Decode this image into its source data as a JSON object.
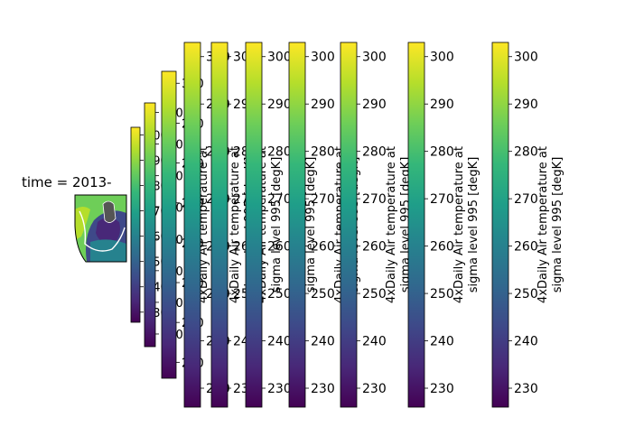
{
  "chart_data": {
    "type": "heatmap",
    "title": "time = 2013-",
    "colormap": "viridis",
    "colorbar_label_line1": "4xDaily Air temperature at",
    "colorbar_label_line2": "sigma level 995 [degK]",
    "value_range": [
      226,
      303
    ],
    "tick_values": [
      230,
      240,
      250,
      260,
      270,
      280,
      290,
      300
    ],
    "colors": {
      "viridis": [
        "#440154",
        "#482878",
        "#3e4989",
        "#31688e",
        "#26828e",
        "#1f9e89",
        "#35b779",
        "#6ece58",
        "#b5de2b",
        "#fde725"
      ],
      "map_land": "#555555",
      "map_frame": "#000000"
    },
    "colorbars": [
      {
        "id": 1,
        "ticks": [
          "230",
          "240",
          "250",
          "260",
          "270",
          "280",
          "290",
          "300"
        ]
      },
      {
        "id": 2,
        "ticks": [
          "230",
          "240",
          "250",
          "260",
          "270",
          "280",
          "290",
          "300"
        ]
      },
      {
        "id": 3,
        "ticks": [
          "230",
          "240",
          "250",
          "260",
          "270",
          "280",
          "290",
          "300"
        ]
      },
      {
        "id": 4,
        "ticks": [
          "230",
          "240",
          "250",
          "260",
          "270",
          "280",
          "290",
          "300"
        ]
      },
      {
        "id": 5,
        "ticks": [
          "230",
          "240",
          "250",
          "260",
          "270",
          "280",
          "290",
          "300"
        ]
      },
      {
        "id": 6,
        "ticks": [
          "230",
          "240",
          "250",
          "260",
          "270",
          "280",
          "290",
          "300"
        ]
      },
      {
        "id": 7,
        "ticks": [
          "230",
          "240",
          "250",
          "260",
          "270",
          "280",
          "290",
          "300"
        ]
      },
      {
        "id": 8,
        "ticks": [
          "230",
          "240",
          "250",
          "260",
          "270",
          "280",
          "290",
          "300"
        ]
      },
      {
        "id": 9,
        "ticks": [
          "230",
          "240",
          "250",
          "260",
          "270",
          "280",
          "290",
          "300"
        ]
      },
      {
        "id": 10,
        "ticks": [
          "230",
          "240",
          "250",
          "260",
          "270",
          "280",
          "290",
          "300"
        ]
      }
    ]
  }
}
